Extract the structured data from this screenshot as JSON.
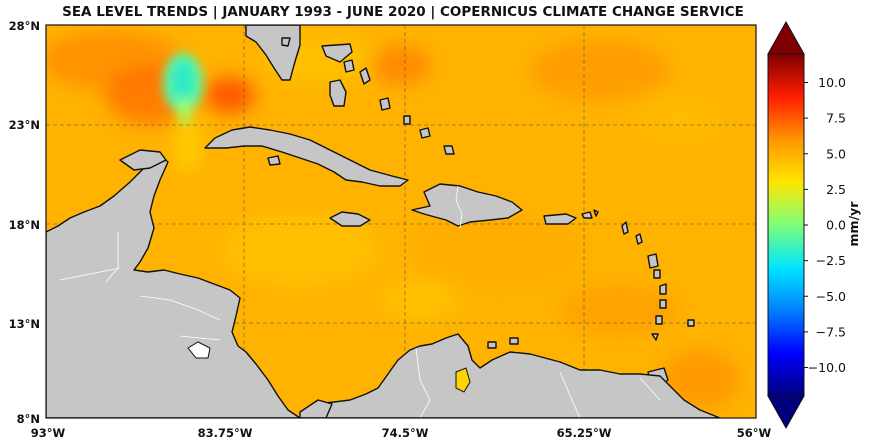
{
  "title": "SEA LEVEL TRENDS | JANUARY 1993 - JUNE 2020 | COPERNICUS CLIMATE CHANGE SERVICE",
  "x_ticks": [
    "93°W",
    "83.75°W",
    "74.5°W",
    "65.25°W",
    "56°W"
  ],
  "y_ticks": [
    "28°N",
    "23°N",
    "18°N",
    "13°N",
    "8°N"
  ],
  "colorbar": {
    "unit": "mm/yr",
    "ticks": [
      "10.0",
      "7.5",
      "5.0",
      "2.5",
      "0.0",
      "−2.5",
      "−5.0",
      "−7.5",
      "−10.0"
    ],
    "range": [
      -12,
      12
    ],
    "colors": [
      "#00007f",
      "#0000ff",
      "#0080ff",
      "#00e5ff",
      "#7dff7a",
      "#ffe600",
      "#ff9500",
      "#ff1e00",
      "#7f0000"
    ]
  },
  "map": {
    "extent": {
      "lon": [
        -93,
        -56
      ],
      "lat": [
        8,
        28
      ]
    },
    "ocean_base_color": "#ffb300",
    "land_color": "#c6c6c6",
    "grid": true
  }
}
